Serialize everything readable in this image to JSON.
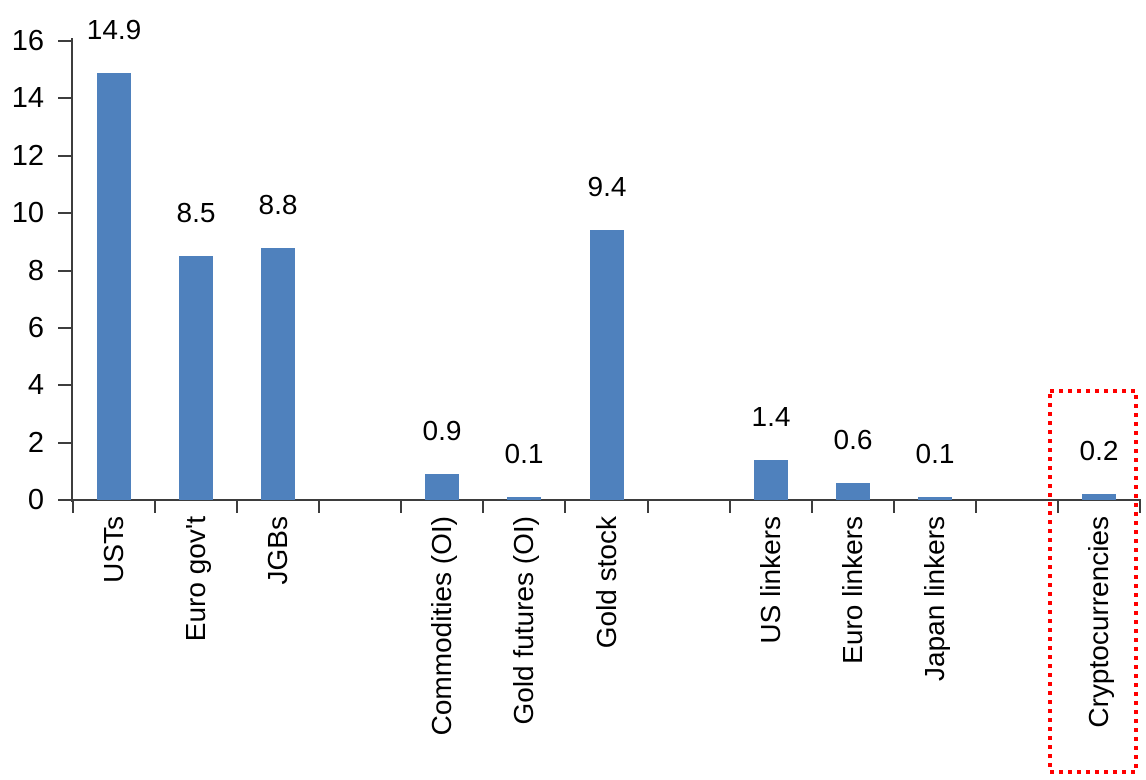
{
  "chart_data": {
    "type": "bar",
    "title": "",
    "xlabel": "",
    "ylabel": "",
    "categories": [
      "USTs",
      "Euro gov't",
      "JGBs",
      "",
      "Commodities (OI)",
      "Gold futures (OI)",
      "Gold stock",
      "",
      "US linkers",
      "Euro linkers",
      "Japan linkers",
      "",
      "Cryptocurrencies"
    ],
    "values": [
      14.9,
      8.5,
      8.8,
      null,
      0.9,
      0.1,
      9.4,
      null,
      1.4,
      0.6,
      0.1,
      null,
      0.2
    ],
    "data_labels": [
      "14.9",
      "8.5",
      "8.8",
      null,
      "0.9",
      "0.1",
      "9.4",
      null,
      "1.4",
      "0.6",
      "0.1",
      null,
      "0.2"
    ],
    "ylim": [
      0,
      16
    ],
    "ytick_step": 2,
    "ytick_labels": [
      "0",
      "2",
      "4",
      "6",
      "8",
      "10",
      "12",
      "14",
      "16"
    ],
    "grid": false,
    "legend": "none",
    "bar_color": "#4F81BD",
    "axis_color": "#3d3d3d",
    "text_color": "#000000",
    "highlight": {
      "category": "Cryptocurrencies",
      "box_color": "#FF0000",
      "box_style": "dotted"
    }
  }
}
